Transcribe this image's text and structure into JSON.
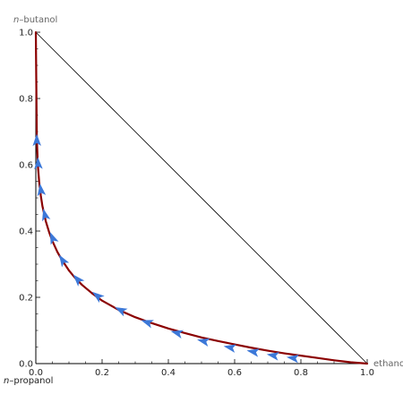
{
  "chart_data": {
    "type": "line",
    "title": "",
    "xlabel": "ethanol",
    "ylabel_prefix": "n",
    "ylabel_rest": "–butanol",
    "corner_label_prefix": "n",
    "corner_label_rest": "–propanol",
    "xlim": [
      0,
      1
    ],
    "ylim": [
      0,
      1
    ],
    "x_ticks": [
      "0.0",
      "0.2",
      "0.4",
      "0.6",
      "0.8",
      "1.0"
    ],
    "y_ticks": [
      "0.0",
      "0.2",
      "0.4",
      "0.6",
      "0.8",
      "1.0"
    ],
    "grid": false,
    "legend": "none",
    "colors": {
      "curve": "#8b0000",
      "arrows": "#3c78d8",
      "diagonal": "#000000",
      "axes": "#000000"
    },
    "series": [
      {
        "x": [
          1.0,
          0.95,
          0.9,
          0.85,
          0.8,
          0.75,
          0.7,
          0.65,
          0.6,
          0.55,
          0.5,
          0.45,
          0.4,
          0.35,
          0.3,
          0.25,
          0.2,
          0.17,
          0.14,
          0.12,
          0.1,
          0.08,
          0.065,
          0.05,
          0.04,
          0.03,
          0.02,
          0.015,
          0.01,
          0.006,
          0.003,
          0.0
        ],
        "y": [
          0.0,
          0.004,
          0.01,
          0.017,
          0.024,
          0.031,
          0.039,
          0.048,
          0.058,
          0.068,
          0.079,
          0.092,
          0.106,
          0.122,
          0.14,
          0.162,
          0.19,
          0.212,
          0.237,
          0.257,
          0.281,
          0.311,
          0.337,
          0.37,
          0.397,
          0.43,
          0.475,
          0.507,
          0.55,
          0.6,
          0.68,
          1.0
        ]
      }
    ],
    "arrows": [
      {
        "x": 0.775,
        "y": 0.017
      },
      {
        "x": 0.715,
        "y": 0.025
      },
      {
        "x": 0.655,
        "y": 0.036
      },
      {
        "x": 0.585,
        "y": 0.049
      },
      {
        "x": 0.505,
        "y": 0.068
      },
      {
        "x": 0.425,
        "y": 0.093
      },
      {
        "x": 0.335,
        "y": 0.125
      },
      {
        "x": 0.255,
        "y": 0.162
      },
      {
        "x": 0.185,
        "y": 0.205
      },
      {
        "x": 0.125,
        "y": 0.255
      },
      {
        "x": 0.08,
        "y": 0.313
      },
      {
        "x": 0.05,
        "y": 0.38
      },
      {
        "x": 0.027,
        "y": 0.45
      },
      {
        "x": 0.015,
        "y": 0.525
      },
      {
        "x": 0.007,
        "y": 0.605
      },
      {
        "x": 0.003,
        "y": 0.675
      }
    ]
  }
}
